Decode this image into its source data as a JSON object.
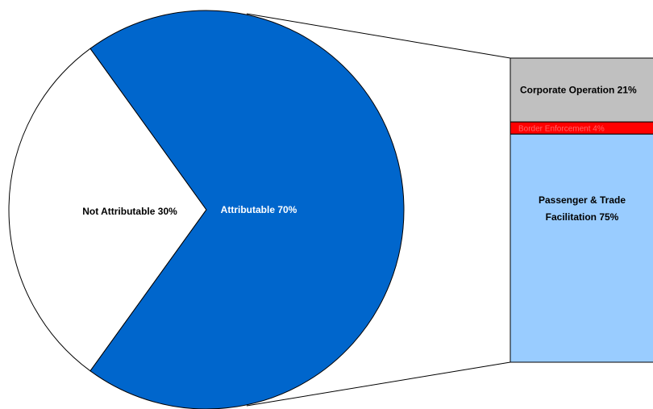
{
  "chart_data": {
    "type": "pie",
    "subtype": "bar-of-pie",
    "title": "",
    "pie": {
      "slices": [
        {
          "label": "Not Attributable 30%",
          "value": 30,
          "color": "#ffffff"
        },
        {
          "label": "Attributable 70%",
          "value": 70,
          "color": "#0066cc"
        }
      ]
    },
    "bar": {
      "of_slice": "Attributable 70%",
      "segments": [
        {
          "label": "Corporate Operation 21%",
          "value": 21,
          "color": "#c0c0c0"
        },
        {
          "label": "Border Enforcement  4%",
          "value": 4,
          "color": "#ff0000"
        },
        {
          "label": "Passenger & Trade Facilitation 75%",
          "value": 75,
          "color": "#99ccff"
        }
      ]
    },
    "legend": "none",
    "grid": false
  }
}
